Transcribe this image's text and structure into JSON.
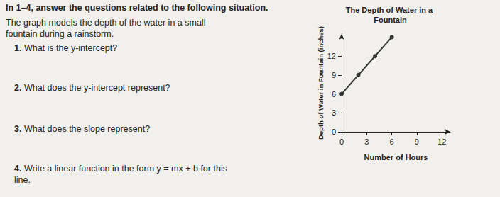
{
  "header": "In 1–4, answer the questions related to the following situation.",
  "intro": "The graph models the depth of the water in a small fountain during a rainstorm.",
  "questions": [
    {
      "number": "1.",
      "text": "What is the y-intercept?"
    },
    {
      "number": "2.",
      "text": "What does the y-intercept represent?"
    },
    {
      "number": "3.",
      "text": "What does the slope represent?"
    },
    {
      "number": "4.",
      "text": "Write a linear function in the form y = mx + b for this line."
    }
  ],
  "chart_data": {
    "type": "line",
    "title": "The Depth of Water in a Fountain",
    "x_label": "Number of Hours",
    "y_label": "Depth of Water in Fountain (inches)",
    "x": [
      0,
      2,
      4,
      6
    ],
    "values": [
      6,
      9,
      12,
      15
    ],
    "xlim": [
      0,
      13
    ],
    "xticks": [
      0,
      3,
      6,
      9,
      12
    ],
    "ylim": [
      0,
      15.5
    ],
    "yticks": [
      0,
      3,
      6,
      9,
      12
    ],
    "color": "#333333",
    "marker": "circle",
    "grid": false
  }
}
